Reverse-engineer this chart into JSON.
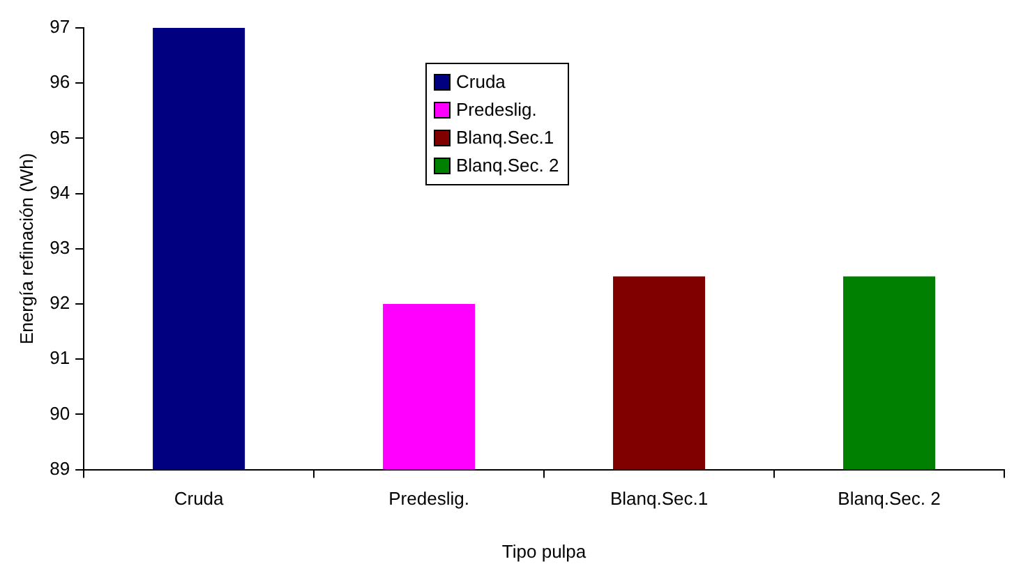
{
  "chart_data": {
    "type": "bar",
    "xlabel": "Tipo pulpa",
    "ylabel": "Energía refinación (Wh)",
    "categories": [
      "Cruda",
      "Predeslig.",
      "Blanq.Sec.1",
      "Blanq.Sec. 2"
    ],
    "series": [
      {
        "name": "Cruda",
        "color": "#000080",
        "values": [
          97,
          null,
          null,
          null
        ]
      },
      {
        "name": "Predeslig.",
        "color": "#ff00ff",
        "values": [
          null,
          92,
          null,
          null
        ]
      },
      {
        "name": "Blanq.Sec.1",
        "color": "#800000",
        "values": [
          null,
          null,
          92.5,
          null
        ]
      },
      {
        "name": "Blanq.Sec. 2",
        "color": "#008000",
        "values": [
          null,
          null,
          null,
          92.5
        ]
      }
    ],
    "ylim": [
      89,
      97
    ],
    "yticks": [
      89,
      90,
      91,
      92,
      93,
      94,
      95,
      96,
      97
    ],
    "grid": false,
    "legend": "top"
  }
}
